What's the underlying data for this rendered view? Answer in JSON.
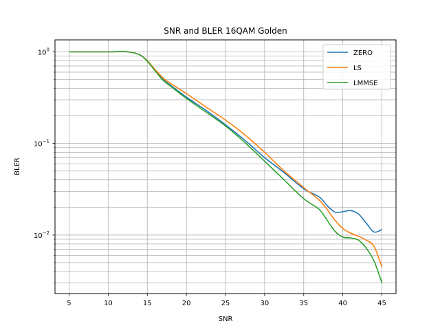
{
  "chart_data": {
    "type": "line",
    "title": "SNR and BLER 16QAM Golden",
    "xlabel": "SNR",
    "ylabel": "BLER",
    "xlim": [
      3.2,
      46.8
    ],
    "ylim": [
      0.0023,
      1.35
    ],
    "yscale": "log",
    "grid": true,
    "legend_position": "top-right",
    "x_ticks": [
      5,
      10,
      15,
      20,
      25,
      30,
      35,
      40,
      45
    ],
    "y_major_ticks": [
      {
        "value": 1,
        "base": "10",
        "exp": "0"
      },
      {
        "value": 0.1,
        "base": "10",
        "exp": "−1"
      },
      {
        "value": 0.01,
        "base": "10",
        "exp": "−2"
      }
    ],
    "series": [
      {
        "name": "ZERO",
        "color": "#1f77b4",
        "x": [
          5,
          10,
          12.5,
          14,
          15,
          16,
          17,
          18,
          20,
          22.5,
          25,
          27.5,
          30,
          32.5,
          35,
          37,
          38,
          39,
          40,
          41,
          42,
          43,
          44,
          45
        ],
        "y": [
          1.0,
          1.0,
          1.0,
          0.93,
          0.8,
          0.63,
          0.5,
          0.43,
          0.32,
          0.23,
          0.16,
          0.108,
          0.07,
          0.048,
          0.032,
          0.026,
          0.021,
          0.0178,
          0.018,
          0.0185,
          0.017,
          0.0135,
          0.0108,
          0.0115
        ]
      },
      {
        "name": "LS",
        "color": "#ff7f0e",
        "x": [
          5,
          10,
          12.5,
          14,
          15,
          16,
          17,
          18,
          20,
          22.5,
          25,
          27.5,
          30,
          32.5,
          35,
          37,
          38,
          39,
          40,
          41,
          42,
          43,
          44,
          45
        ],
        "y": [
          1.0,
          1.0,
          1.0,
          0.93,
          0.8,
          0.64,
          0.52,
          0.45,
          0.35,
          0.25,
          0.18,
          0.124,
          0.08,
          0.05,
          0.033,
          0.024,
          0.019,
          0.0145,
          0.0118,
          0.0105,
          0.0097,
          0.0088,
          0.0075,
          0.0045
        ]
      },
      {
        "name": "LMMSE",
        "color": "#2ca02c",
        "x": [
          5,
          10,
          12.5,
          14,
          15,
          16,
          17,
          18,
          20,
          22.5,
          25,
          27.5,
          30,
          32.5,
          35,
          37,
          38,
          39,
          40,
          41,
          42,
          43,
          44,
          45
        ],
        "y": [
          1.0,
          1.0,
          1.0,
          0.93,
          0.79,
          0.62,
          0.49,
          0.42,
          0.31,
          0.22,
          0.155,
          0.102,
          0.064,
          0.04,
          0.025,
          0.019,
          0.0145,
          0.011,
          0.0095,
          0.0093,
          0.0088,
          0.0072,
          0.0052,
          0.003
        ]
      }
    ]
  }
}
